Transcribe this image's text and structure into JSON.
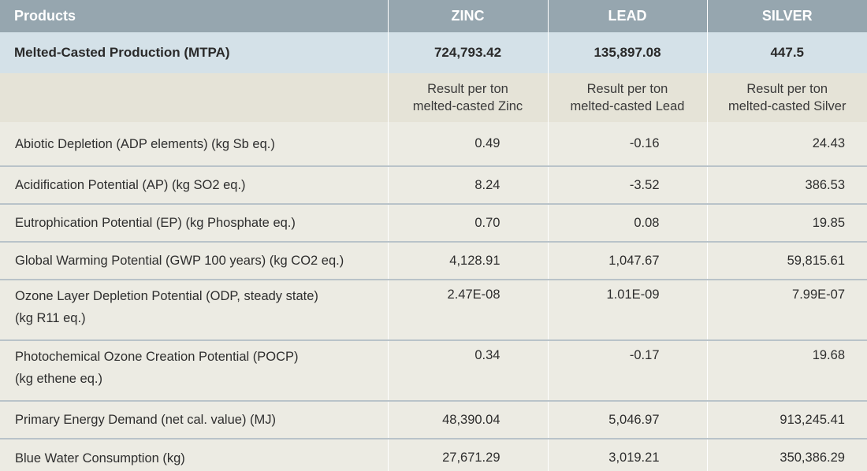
{
  "header": {
    "products": "Products",
    "zinc": "ZINC",
    "lead": "LEAD",
    "silver": "SILVER"
  },
  "production": {
    "label": "Melted-Casted Production (MTPA)",
    "zinc": "724,793.42",
    "lead": "135,897.08",
    "silver": "447.5"
  },
  "result_per_ton": {
    "zinc_line1": "Result per ton",
    "zinc_line2": "melted-casted Zinc",
    "lead_line1": "Result per ton",
    "lead_line2": "melted-casted Lead",
    "silver_line1": "Result per ton",
    "silver_line2": "melted-casted Silver"
  },
  "rows": [
    {
      "label1": "Abiotic Depletion (ADP elements) (kg Sb eq.)",
      "label2": "",
      "zinc": "0.49",
      "lead": "-0.16",
      "silver": "24.43"
    },
    {
      "label1": "Acidification Potential (AP) (kg SO2 eq.)",
      "label2": "",
      "zinc": "8.24",
      "lead": "-3.52",
      "silver": "386.53"
    },
    {
      "label1": "Eutrophication Potential (EP) (kg Phosphate eq.)",
      "label2": "",
      "zinc": "0.70",
      "lead": "0.08",
      "silver": "19.85"
    },
    {
      "label1": "Global Warming Potential (GWP 100 years) (kg CO2 eq.)",
      "label2": "",
      "zinc": "4,128.91",
      "lead": "1,047.67",
      "silver": "59,815.61"
    },
    {
      "label1": "Ozone Layer Depletion Potential (ODP, steady state)",
      "label2": "(kg R11 eq.)",
      "zinc": "2.47E-08",
      "lead": "1.01E-09",
      "silver": "7.99E-07"
    },
    {
      "label1": "Photochemical Ozone Creation Potential (POCP)",
      "label2": "(kg ethene eq.)",
      "zinc": "0.34",
      "lead": "-0.17",
      "silver": "19.68"
    },
    {
      "label1": "Primary Energy Demand (net cal. value) (MJ)",
      "label2": "",
      "zinc": "48,390.04",
      "lead": "5,046.97",
      "silver": "913,245.41"
    },
    {
      "label1": "Blue Water Consumption (kg)",
      "label2": "",
      "zinc": "27,671.29",
      "lead": "3,019.21",
      "silver": "350,386.29"
    }
  ]
}
